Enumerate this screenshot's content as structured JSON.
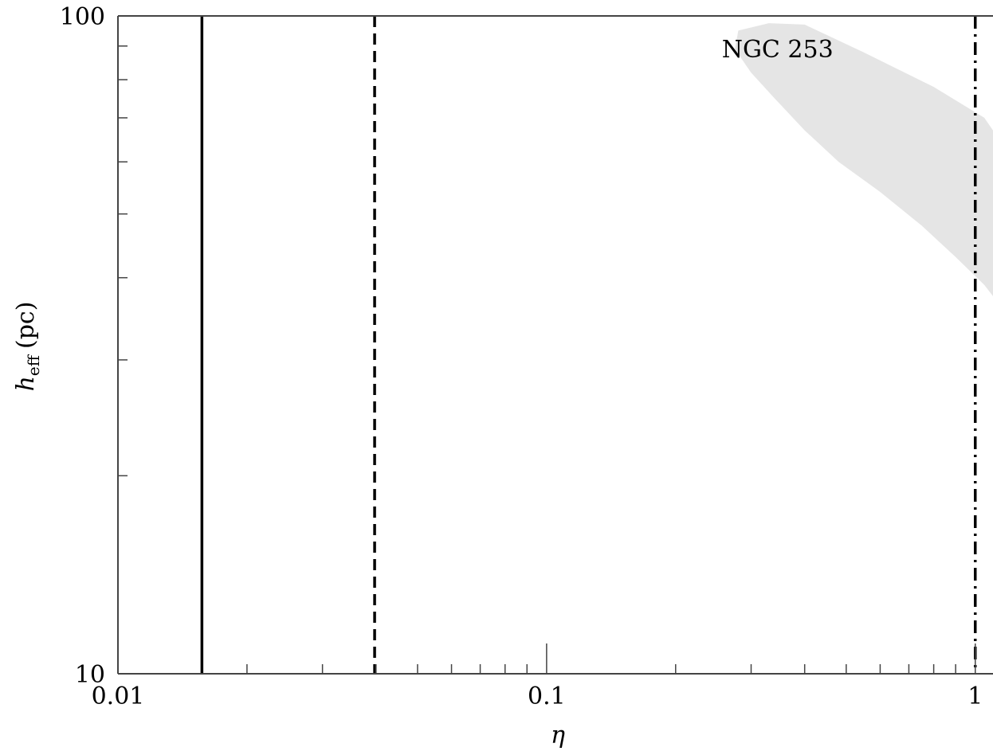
{
  "chart_data": {
    "type": "line",
    "title": "",
    "xlabel_symbol": "η",
    "ylabel": {
      "symbol": "h",
      "subscript": "eff",
      "unit": "(pc)"
    },
    "xscale": "log",
    "yscale": "log",
    "xlim": [
      0.01,
      1.1
    ],
    "ylim": [
      10,
      100
    ],
    "x_tick_labels": [
      {
        "value": 0.01,
        "label": "0.01"
      },
      {
        "value": 0.1,
        "label": "0.1"
      },
      {
        "value": 1,
        "label": "1"
      }
    ],
    "y_tick_labels": [
      {
        "value": 10,
        "label": "10"
      },
      {
        "value": 100,
        "label": "100"
      }
    ],
    "x_minor_ticks": [
      0.02,
      0.03,
      0.04,
      0.05,
      0.06,
      0.07,
      0.08,
      0.09,
      0.2,
      0.3,
      0.4,
      0.5,
      0.6,
      0.7,
      0.8,
      0.9
    ],
    "y_minor_ticks": [
      20,
      30,
      40,
      50,
      60,
      70,
      80,
      90
    ],
    "grid": false,
    "legend": "none",
    "vertical_lines": [
      {
        "style": "solid",
        "x": 0.0157
      },
      {
        "style": "dashed",
        "x": 0.0397
      },
      {
        "style": "dashdot",
        "x": 1.0
      }
    ],
    "region": {
      "label": "NGC 253",
      "fill": "#e5e5e5",
      "outline": [
        [
          0.28,
          95
        ],
        [
          0.33,
          97.5
        ],
        [
          0.4,
          97
        ],
        [
          0.55,
          88
        ],
        [
          0.8,
          78
        ],
        [
          1.05,
          70
        ],
        [
          1.1,
          67
        ],
        [
          1.1,
          37.5
        ],
        [
          1.05,
          39
        ],
        [
          0.9,
          43
        ],
        [
          0.75,
          48
        ],
        [
          0.6,
          54
        ],
        [
          0.48,
          60
        ],
        [
          0.4,
          67
        ],
        [
          0.34,
          75
        ],
        [
          0.3,
          82
        ],
        [
          0.275,
          89
        ]
      ],
      "label_position": [
        0.4,
        89
      ]
    },
    "colors": {
      "lines": "#000000",
      "axes": "#444444",
      "region": "#e5e5e5"
    }
  }
}
